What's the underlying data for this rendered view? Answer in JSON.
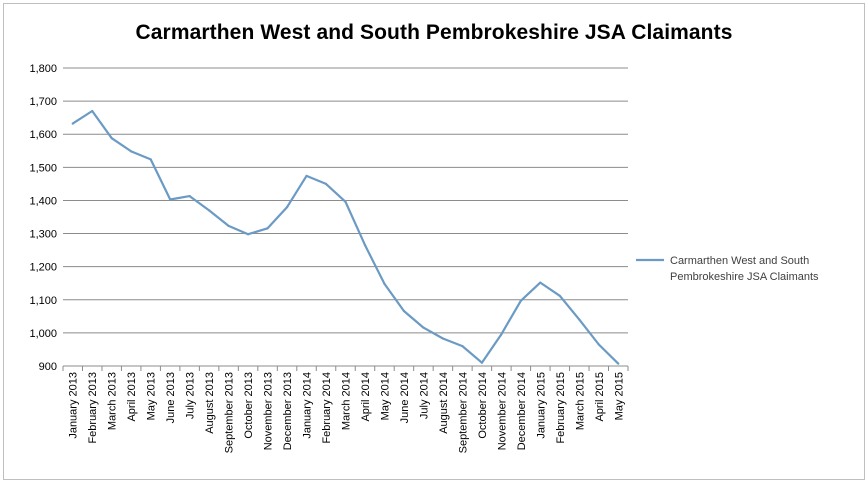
{
  "chart_data": {
    "type": "line",
    "title": "Carmarthen West and South Pembrokeshire JSA Claimants",
    "xlabel": "",
    "ylabel": "",
    "ylim": [
      900,
      1800
    ],
    "yticks": [
      "900",
      "1,000",
      "1,100",
      "1,200",
      "1,300",
      "1,400",
      "1,500",
      "1,600",
      "1,700",
      "1,800"
    ],
    "grid": true,
    "legend_position": "right",
    "line_color": "#6b9ac4",
    "categories": [
      "January 2013",
      "February 2013",
      "March 2013",
      "April 2013",
      "May 2013",
      "June 2013",
      "July 2013",
      "August 2013",
      "September 2013",
      "October 2013",
      "November 2013",
      "December 2013",
      "January 2014",
      "February 2014",
      "March 2014",
      "April 2014",
      "May 2014",
      "June 2014",
      "July 2014",
      "August 2014",
      "September 2014",
      "October 2014",
      "November 2014",
      "December 2014",
      "January 2015",
      "February 2015",
      "March 2015",
      "April 2015",
      "May 2015"
    ],
    "series": [
      {
        "name": "Carmarthen West and South Pembrokeshire JSA Claimants",
        "legend_lines": [
          "Carmarthen West and South",
          "Pembrokeshire JSA Claimants"
        ],
        "values": [
          1632,
          1670,
          1588,
          1548,
          1524,
          1403,
          1413,
          1370,
          1323,
          1298,
          1316,
          1380,
          1474,
          1450,
          1396,
          1265,
          1148,
          1066,
          1016,
          983,
          960,
          910,
          996,
          1097,
          1152,
          1112,
          1040,
          965,
          907
        ]
      }
    ]
  }
}
